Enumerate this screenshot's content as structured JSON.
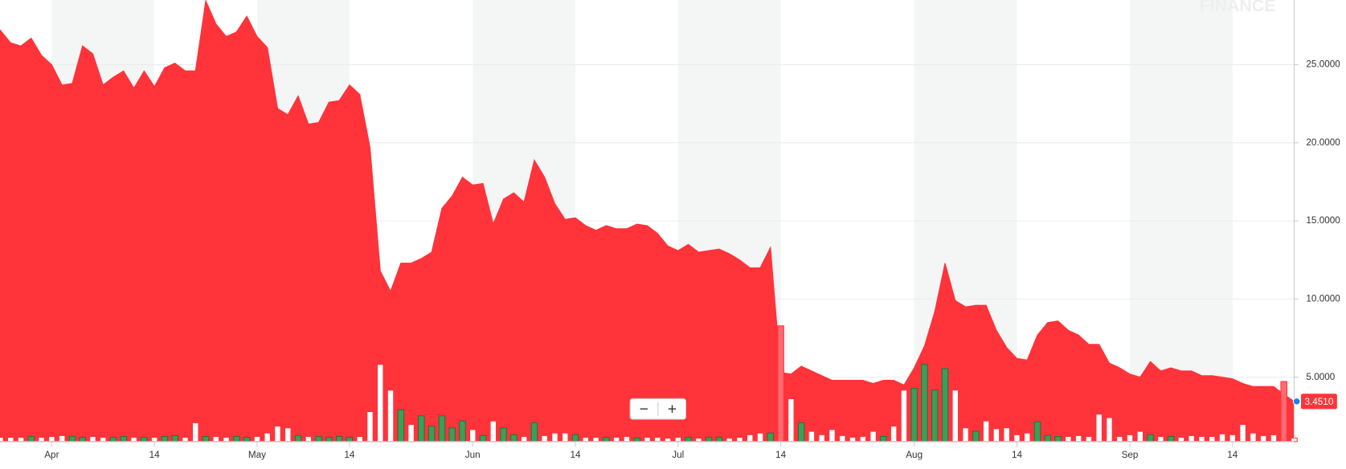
{
  "chart_data": {
    "type": "area",
    "color": "#ff333a",
    "values": [
      27.2,
      26.4,
      26.2,
      26.7,
      25.6,
      25.0,
      23.7,
      23.8,
      26.2,
      25.7,
      23.7,
      24.2,
      24.6,
      23.5,
      24.6,
      23.6,
      24.8,
      25.1,
      24.6,
      24.6,
      29.1,
      27.6,
      26.8,
      27.1,
      28.1,
      26.8,
      26.1,
      22.2,
      21.8,
      23.0,
      21.2,
      21.3,
      22.6,
      22.7,
      23.7,
      23.1,
      19.7,
      11.8,
      10.5,
      12.3,
      12.3,
      12.6,
      13.0,
      15.8,
      16.6,
      17.8,
      17.3,
      17.4,
      14.8,
      16.4,
      16.8,
      16.2,
      18.9,
      17.8,
      16.1,
      15.1,
      15.2,
      14.7,
      14.4,
      14.7,
      14.5,
      14.5,
      14.8,
      14.7,
      14.2,
      13.4,
      13.1,
      13.5,
      13.0,
      13.1,
      13.2,
      12.9,
      12.5,
      12.0,
      12.0,
      13.3,
      5.3,
      5.2,
      5.7,
      5.4,
      5.1,
      4.8,
      4.8,
      4.8,
      4.8,
      4.6,
      4.8,
      4.8,
      4.5,
      5.6,
      7.0,
      9.2,
      12.3,
      9.9,
      9.5,
      9.6,
      9.6,
      8.0,
      6.9,
      6.2,
      6.1,
      7.7,
      8.5,
      8.6,
      8.0,
      7.7,
      7.1,
      7.1,
      5.9,
      5.6,
      5.2,
      5.0,
      6.0,
      5.4,
      5.6,
      5.4,
      5.4,
      5.1,
      5.1,
      5.0,
      4.9,
      4.6,
      4.4,
      4.4,
      4.4,
      3.9,
      3.451
    ],
    "volume": [
      5,
      5,
      5,
      6,
      5,
      6,
      7,
      6,
      5,
      6,
      5,
      5,
      6,
      5,
      5,
      5,
      6,
      7,
      5,
      22,
      6,
      6,
      5,
      6,
      5,
      6,
      10,
      18,
      16,
      7,
      6,
      6,
      5,
      6,
      5,
      6,
      35,
      90,
      60,
      37,
      20,
      30,
      18,
      30,
      16,
      24,
      14,
      7,
      24,
      16,
      8,
      6,
      22,
      7,
      10,
      10,
      8,
      5,
      5,
      5,
      5,
      6,
      4,
      5,
      5,
      4,
      5,
      5,
      4,
      5,
      5,
      4,
      5,
      8,
      10,
      10,
      135,
      50,
      22,
      12,
      8,
      14,
      7,
      5,
      6,
      12,
      6,
      18,
      60,
      62,
      90,
      60,
      85,
      60,
      16,
      12,
      24,
      15,
      16,
      8,
      10,
      23,
      7,
      6,
      6,
      7,
      6,
      32,
      28,
      6,
      8,
      12,
      8,
      6,
      6,
      5,
      7,
      6,
      6,
      9,
      8,
      20,
      10,
      7,
      8,
      70,
      4
    ],
    "ylim": [
      0.88,
      29.14
    ],
    "yticks": [
      {
        "value": 5,
        "label": "5.0000"
      },
      {
        "value": 10,
        "label": "10.0000"
      },
      {
        "value": 15,
        "label": "15.0000"
      },
      {
        "value": 20,
        "label": "20.0000"
      },
      {
        "value": 25,
        "label": "25.0000"
      }
    ],
    "xticks": [
      {
        "value": 5,
        "label": "Apr"
      },
      {
        "value": 15,
        "label": "14"
      },
      {
        "value": 25,
        "label": "May"
      },
      {
        "value": 34,
        "label": "14"
      },
      {
        "value": 46,
        "label": "Jun"
      },
      {
        "value": 56,
        "label": "14"
      },
      {
        "value": 66,
        "label": "Jul"
      },
      {
        "value": 76,
        "label": "14"
      },
      {
        "value": 89,
        "label": "Aug"
      },
      {
        "value": 99,
        "label": "14"
      },
      {
        "value": 110,
        "label": "Sep"
      },
      {
        "value": 120,
        "label": "14"
      }
    ],
    "grid": true,
    "current_price": {
      "value": 3.451,
      "label": "3.4510"
    },
    "watermark": "FINANCE",
    "zoom": [
      "−",
      "+"
    ]
  }
}
